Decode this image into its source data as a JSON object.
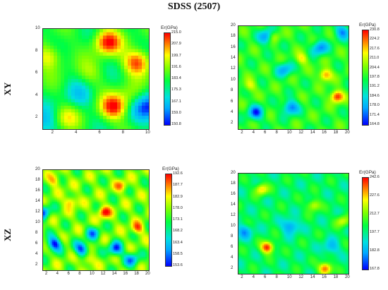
{
  "title": "SDSS (2507)",
  "row_labels": [
    "XY",
    "XZ"
  ],
  "chart_data": [
    {
      "type": "heatmap",
      "row": "XY",
      "xlim": [
        1,
        10
      ],
      "ylim": [
        1,
        10
      ],
      "xticks": [
        "2",
        "4",
        "6",
        "8",
        "10"
      ],
      "yticks": [
        "2",
        "4",
        "6",
        "8",
        "10"
      ],
      "colorbar": {
        "title": "Er(GPa)",
        "ticks": [
          "215.0",
          "207.9",
          "199.7",
          "191.6",
          "183.4",
          "175.3",
          "167.1",
          "159.0",
          "150.8"
        ],
        "min": 150.8,
        "max": 216.0
      },
      "grid_size": 10,
      "hotspots": [
        [
          6.5,
          8.8,
          215
        ],
        [
          7,
          3,
          214
        ],
        [
          9,
          7,
          212
        ],
        [
          1.5,
          7.5,
          198
        ],
        [
          3,
          2,
          195
        ],
        [
          8.5,
          4,
          190
        ],
        [
          5,
          6,
          188
        ]
      ],
      "coldspots": [
        [
          10,
          3,
          152
        ],
        [
          1,
          1.5,
          165
        ],
        [
          4,
          4,
          170
        ]
      ],
      "base": 180
    },
    {
      "type": "heatmap",
      "row": "XY",
      "xlim": [
        1,
        20
      ],
      "ylim": [
        1,
        20
      ],
      "xticks": [
        "2",
        "4",
        "6",
        "8",
        "10",
        "12",
        "14",
        "16",
        "18",
        "20"
      ],
      "yticks": [
        "2",
        "4",
        "6",
        "8",
        "10",
        "12",
        "14",
        "16",
        "18",
        "20"
      ],
      "colorbar": {
        "title": "Er(GPa)",
        "ticks": [
          "230.8",
          "224.2",
          "217.6",
          "211.0",
          "204.4",
          "197.8",
          "191.2",
          "184.6",
          "178.0",
          "171.4",
          "164.8"
        ],
        "min": 164.8,
        "max": 231.0
      },
      "grid_size": 20,
      "hotspots": [
        [
          18,
          7,
          230
        ],
        [
          16,
          11,
          222
        ],
        [
          7,
          18,
          215
        ],
        [
          12,
          14,
          212
        ],
        [
          3,
          9,
          210
        ]
      ],
      "coldspots": [
        [
          6,
          18,
          168
        ],
        [
          10,
          5,
          170
        ],
        [
          4,
          4,
          170
        ],
        [
          15,
          16,
          172
        ],
        [
          19,
          19,
          174
        ],
        [
          9,
          12,
          176
        ]
      ],
      "base": 196
    },
    {
      "type": "heatmap",
      "row": "XZ",
      "xlim": [
        1,
        20
      ],
      "ylim": [
        1,
        20
      ],
      "xticks": [
        "2",
        "4",
        "6",
        "8",
        "10",
        "12",
        "14",
        "16",
        "18",
        "20"
      ],
      "yticks": [
        "2",
        "4",
        "6",
        "8",
        "10",
        "12",
        "14",
        "16",
        "18",
        "20"
      ],
      "colorbar": {
        "title": "Er(GPa)",
        "ticks": [
          "192.6",
          "187.7",
          "182.9",
          "178.0",
          "173.1",
          "168.2",
          "163.4",
          "158.5",
          "153.6"
        ],
        "min": 153.6,
        "max": 192.6
      },
      "grid_size": 20,
      "hotspots": [
        [
          12,
          12,
          192
        ],
        [
          18,
          9,
          188
        ],
        [
          6,
          14,
          186
        ],
        [
          15,
          17,
          185
        ],
        [
          3,
          18,
          184
        ],
        [
          9,
          3,
          185
        ]
      ],
      "coldspots": [
        [
          3,
          6,
          154
        ],
        [
          8,
          5,
          156
        ],
        [
          14,
          5,
          157
        ],
        [
          1,
          12,
          158
        ],
        [
          17,
          3,
          160
        ],
        [
          10,
          8,
          162
        ]
      ],
      "base": 175
    },
    {
      "type": "heatmap",
      "row": "XZ",
      "xlim": [
        1,
        20
      ],
      "ylim": [
        1,
        20
      ],
      "xticks": [
        "2",
        "4",
        "6",
        "8",
        "10",
        "12",
        "14",
        "16",
        "18",
        "20"
      ],
      "yticks": [
        "2",
        "4",
        "6",
        "8",
        "10",
        "12",
        "14",
        "16",
        "18",
        "20"
      ],
      "colorbar": {
        "title": "Er(GPa)",
        "ticks": [
          "242.6",
          "227.6",
          "212.7",
          "197.7",
          "182.8",
          "167.8"
        ],
        "min": 167.8,
        "max": 242.6
      },
      "grid_size": 20,
      "hotspots": [
        [
          6,
          6,
          242
        ],
        [
          16,
          2,
          238
        ],
        [
          5,
          17,
          225
        ],
        [
          14,
          14,
          220
        ],
        [
          19,
          11,
          218
        ]
      ],
      "coldspots": [
        [
          10,
          10,
          175
        ],
        [
          2,
          9,
          180
        ],
        [
          17,
          6,
          182
        ]
      ],
      "base": 198
    }
  ],
  "colors": {
    "ramp": [
      "#0000ff",
      "#00a8ff",
      "#00e0e0",
      "#00ff40",
      "#80ff00",
      "#ffff00",
      "#ff8000",
      "#ff0000"
    ]
  }
}
